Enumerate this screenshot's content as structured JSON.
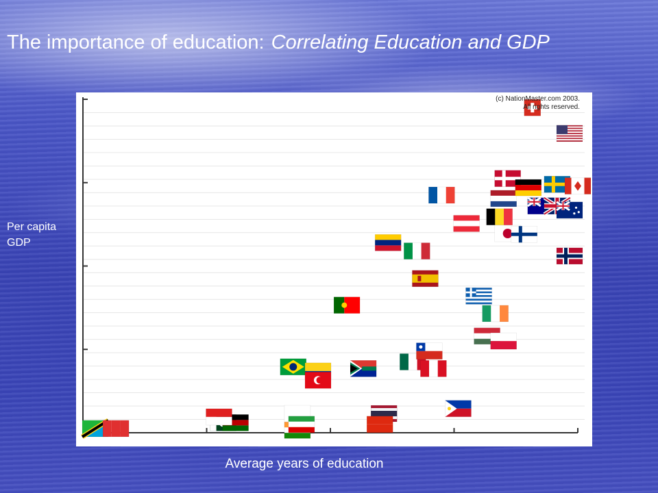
{
  "slide": {
    "title": "The importance of education:",
    "subtitle": "Correlating Education and GDP"
  },
  "chart_data": {
    "type": "scatter",
    "xlabel": "Average years of education",
    "ylabel": "Per capita GDP",
    "source_note": [
      "(c) NationMaster.com 2003.",
      "All rights reserved."
    ],
    "xlim": [
      0,
      12
    ],
    "ylim": [
      0,
      40000
    ],
    "grid": true,
    "marker": "country flags",
    "points": [
      {
        "flag": "tanzania",
        "x": 0.3,
        "y": 500
      },
      {
        "flag": "other-red-1",
        "x": 0.8,
        "y": 500
      },
      {
        "flag": "pakistan",
        "x": 3.4,
        "y": 1200
      },
      {
        "flag": "kenya",
        "x": 3.7,
        "y": 1200
      },
      {
        "flag": "indonesia",
        "x": 3.3,
        "y": 1900
      },
      {
        "flag": "brazil",
        "x": 5.1,
        "y": 7900
      },
      {
        "flag": "colombia",
        "x": 5.7,
        "y": 7400
      },
      {
        "flag": "turkey",
        "x": 5.7,
        "y": 6300
      },
      {
        "flag": "peru-alt",
        "x": 5.2,
        "y": 2300
      },
      {
        "flag": "india",
        "x": 5.2,
        "y": 300
      },
      {
        "flag": "iran",
        "x": 5.3,
        "y": 1000
      },
      {
        "flag": "south-africa",
        "x": 6.8,
        "y": 7700
      },
      {
        "flag": "thailand",
        "x": 7.3,
        "y": 2300
      },
      {
        "flag": "china",
        "x": 7.2,
        "y": 1000
      },
      {
        "flag": "portugal",
        "x": 6.4,
        "y": 15300
      },
      {
        "flag": "venezuela",
        "x": 7.4,
        "y": 22800
      },
      {
        "flag": "italy",
        "x": 8.1,
        "y": 21800
      },
      {
        "flag": "spain",
        "x": 8.3,
        "y": 18500
      },
      {
        "flag": "mexico",
        "x": 8.0,
        "y": 8500
      },
      {
        "flag": "peru",
        "x": 8.5,
        "y": 7700
      },
      {
        "flag": "chile",
        "x": 8.4,
        "y": 9800
      },
      {
        "flag": "philippines",
        "x": 9.1,
        "y": 2900
      },
      {
        "flag": "france",
        "x": 8.7,
        "y": 28500
      },
      {
        "flag": "austria",
        "x": 9.3,
        "y": 25100
      },
      {
        "flag": "greece",
        "x": 9.6,
        "y": 16400
      },
      {
        "flag": "ireland",
        "x": 10.0,
        "y": 14300
      },
      {
        "flag": "hungary",
        "x": 9.8,
        "y": 11600
      },
      {
        "flag": "poland",
        "x": 10.2,
        "y": 11000
      },
      {
        "flag": "denmark",
        "x": 10.3,
        "y": 30500
      },
      {
        "flag": "netherlands",
        "x": 10.2,
        "y": 28100
      },
      {
        "flag": "belgium",
        "x": 10.1,
        "y": 25900
      },
      {
        "flag": "japan",
        "x": 10.3,
        "y": 23900
      },
      {
        "flag": "finland",
        "x": 10.7,
        "y": 23800
      },
      {
        "flag": "germany",
        "x": 10.8,
        "y": 29400
      },
      {
        "flag": "australia",
        "x": 11.1,
        "y": 27200
      },
      {
        "flag": "uk",
        "x": 11.5,
        "y": 27200
      },
      {
        "flag": "new-zealand",
        "x": 11.8,
        "y": 26700
      },
      {
        "flag": "sweden",
        "x": 11.5,
        "y": 29800
      },
      {
        "flag": "canada",
        "x": 12.0,
        "y": 29600
      },
      {
        "flag": "norway",
        "x": 11.8,
        "y": 21200
      },
      {
        "flag": "switzerland",
        "x": 10.9,
        "y": 39000
      },
      {
        "flag": "usa",
        "x": 11.8,
        "y": 35900
      }
    ]
  }
}
